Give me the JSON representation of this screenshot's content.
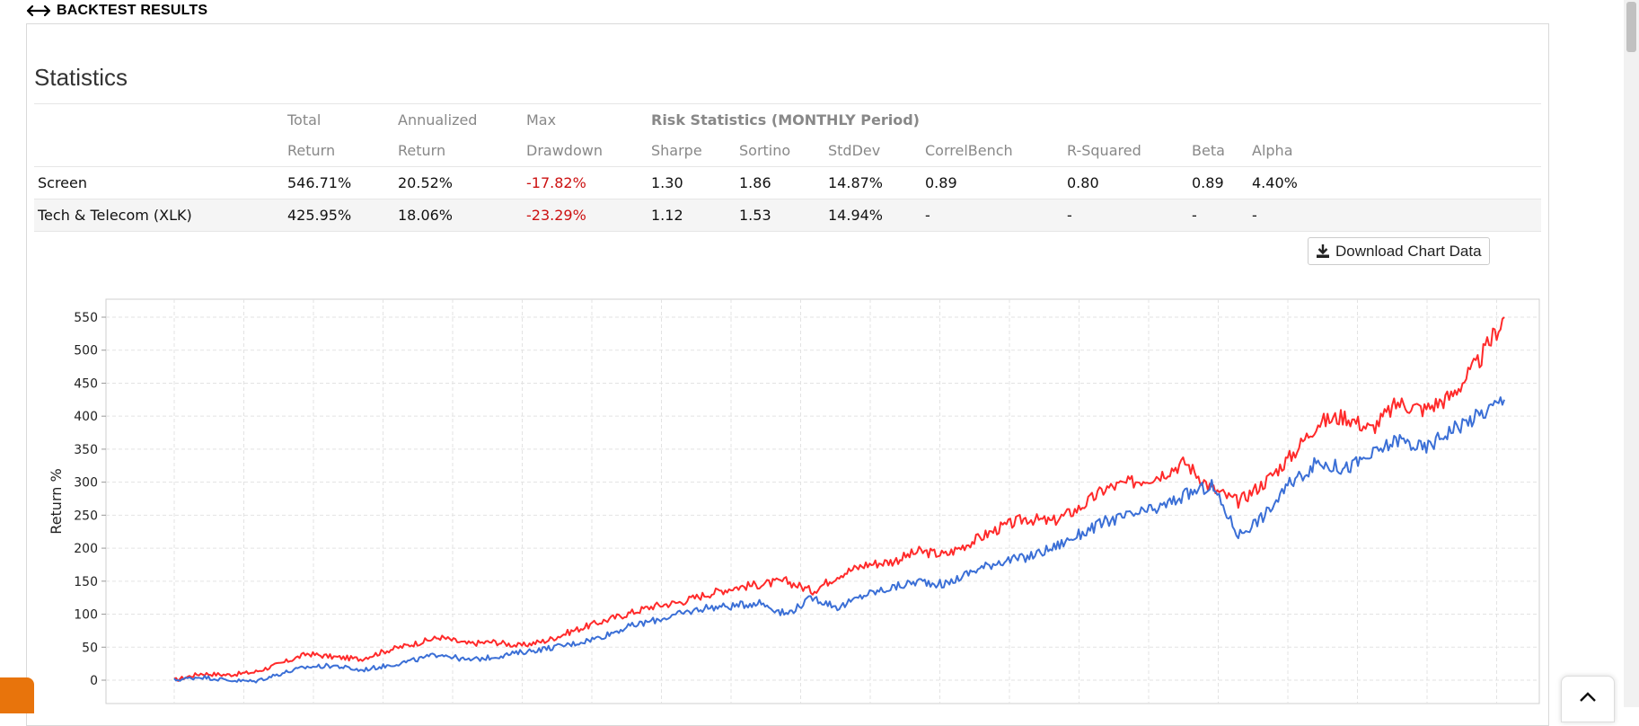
{
  "header": {
    "title": "BACKTEST RESULTS",
    "icon": "double-arrow-icon"
  },
  "statistics": {
    "title": "Statistics",
    "columns_line1": [
      "",
      "Total",
      "Annualized",
      "Max",
      "Risk Statistics (MONTHLY Period)"
    ],
    "columns_line2": [
      "",
      "Return",
      "Return",
      "Drawdown",
      "Sharpe",
      "Sortino",
      "StdDev",
      "CorrelBench",
      "R-Squared",
      "Beta",
      "Alpha"
    ],
    "rows": [
      {
        "name": "Screen",
        "total_return": "546.71%",
        "annualized_return": "20.52%",
        "max_drawdown": "-17.82%",
        "sharpe": "1.30",
        "sortino": "1.86",
        "stddev": "14.87%",
        "correlbench": "0.89",
        "r_squared": "0.80",
        "beta": "0.89",
        "alpha": "4.40%"
      },
      {
        "name": "Tech & Telecom (XLK)",
        "total_return": "425.95%",
        "annualized_return": "18.06%",
        "max_drawdown": "-23.29%",
        "sharpe": "1.12",
        "sortino": "1.53",
        "stddev": "14.94%",
        "correlbench": "-",
        "r_squared": "-",
        "beta": "-",
        "alpha": "-"
      }
    ],
    "negative_color": "#cc1111"
  },
  "download_button": {
    "label": "Download Chart Data",
    "icon": "download-icon"
  },
  "chart_data": {
    "type": "line",
    "ylabel": "Return %",
    "ylim": [
      -10,
      570
    ],
    "yticks": [
      0,
      50,
      100,
      150,
      200,
      250,
      300,
      350,
      400,
      450,
      500,
      550
    ],
    "grid": true,
    "x_anchors": [
      0,
      2,
      4,
      6,
      8,
      10,
      12,
      14,
      16,
      18,
      20,
      22,
      24,
      26,
      28,
      30,
      32,
      34,
      36,
      38,
      40,
      42,
      44,
      46,
      48,
      50,
      52,
      54,
      56,
      58,
      60,
      62,
      64,
      66,
      68,
      70,
      72,
      74,
      76,
      78,
      80,
      82,
      84,
      86,
      88,
      90,
      92,
      94,
      96,
      98,
      100
    ],
    "series": [
      {
        "color": "#ff2a2a",
        "values": [
          0,
          10,
          8,
          12,
          25,
          40,
          35,
          32,
          45,
          55,
          65,
          55,
          58,
          52,
          60,
          75,
          88,
          100,
          112,
          118,
          130,
          140,
          145,
          150,
          135,
          160,
          175,
          180,
          195,
          190,
          210,
          230,
          245,
          240,
          260,
          290,
          300,
          310,
          330,
          290,
          270,
          300,
          340,
          390,
          400,
          380,
          420,
          410,
          430,
          480,
          550
        ]
      },
      {
        "color": "#3b6fd6",
        "values": [
          0,
          5,
          0,
          -2,
          10,
          20,
          22,
          15,
          22,
          30,
          40,
          30,
          35,
          42,
          48,
          55,
          65,
          80,
          90,
          100,
          110,
          112,
          118,
          100,
          125,
          110,
          130,
          140,
          150,
          145,
          165,
          180,
          185,
          200,
          220,
          240,
          250,
          260,
          280,
          295,
          220,
          250,
          300,
          330,
          320,
          340,
          365,
          350,
          380,
          400,
          425
        ]
      }
    ]
  }
}
